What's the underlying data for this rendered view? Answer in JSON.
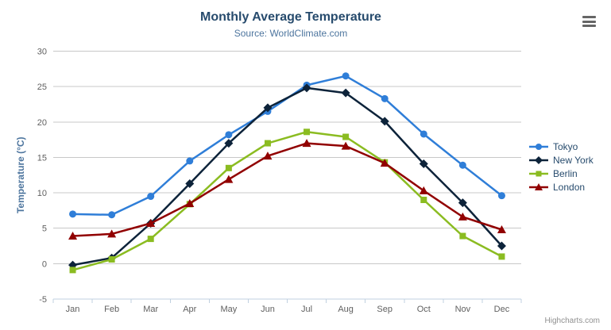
{
  "header": {
    "title": "Monthly Average Temperature",
    "subtitle": "Source: WorldClimate.com"
  },
  "toolbar": {
    "export_menu_icon": "hamburger-icon"
  },
  "credits": {
    "label": "Highcharts.com"
  },
  "chart_data": {
    "type": "line",
    "title": "Monthly Average Temperature",
    "subtitle": "Source: WorldClimate.com",
    "xlabel": "",
    "ylabel": "Temperature (°C)",
    "ylim": [
      -5,
      30
    ],
    "ytick_step": 5,
    "yticks": [
      30,
      25,
      20,
      15,
      10,
      5,
      0,
      -5
    ],
    "grid": true,
    "legend_position": "right",
    "categories": [
      "Jan",
      "Feb",
      "Mar",
      "Apr",
      "May",
      "Jun",
      "Jul",
      "Aug",
      "Sep",
      "Oct",
      "Nov",
      "Dec"
    ],
    "series": [
      {
        "name": "Tokyo",
        "color": "#2f7ed8",
        "marker": "circle",
        "values": [
          7.0,
          6.9,
          9.5,
          14.5,
          18.2,
          21.5,
          25.2,
          26.5,
          23.3,
          18.3,
          13.9,
          9.6
        ]
      },
      {
        "name": "New York",
        "color": "#0d233a",
        "marker": "diamond",
        "values": [
          -0.2,
          0.8,
          5.7,
          11.3,
          17.0,
          22.0,
          24.8,
          24.1,
          20.1,
          14.1,
          8.6,
          2.5
        ]
      },
      {
        "name": "Berlin",
        "color": "#8bbc21",
        "marker": "square",
        "values": [
          -0.9,
          0.6,
          3.5,
          8.4,
          13.5,
          17.0,
          18.6,
          17.9,
          14.3,
          9.0,
          3.9,
          1.0
        ]
      },
      {
        "name": "London",
        "color": "#910000",
        "marker": "triangle",
        "values": [
          3.9,
          4.2,
          5.7,
          8.5,
          11.9,
          15.2,
          17.0,
          16.6,
          14.2,
          10.3,
          6.6,
          4.8
        ]
      }
    ],
    "styles": {
      "title_color": "#274b6d",
      "subtitle_color": "#4d759e",
      "axis_title_color": "#4d759e",
      "tick_label_color": "#606060",
      "grid_color": "#c8c8c8",
      "axis_line_color": "#c0d0e0",
      "legend_text_color": "#274b6d",
      "credits_color": "#909090"
    }
  }
}
